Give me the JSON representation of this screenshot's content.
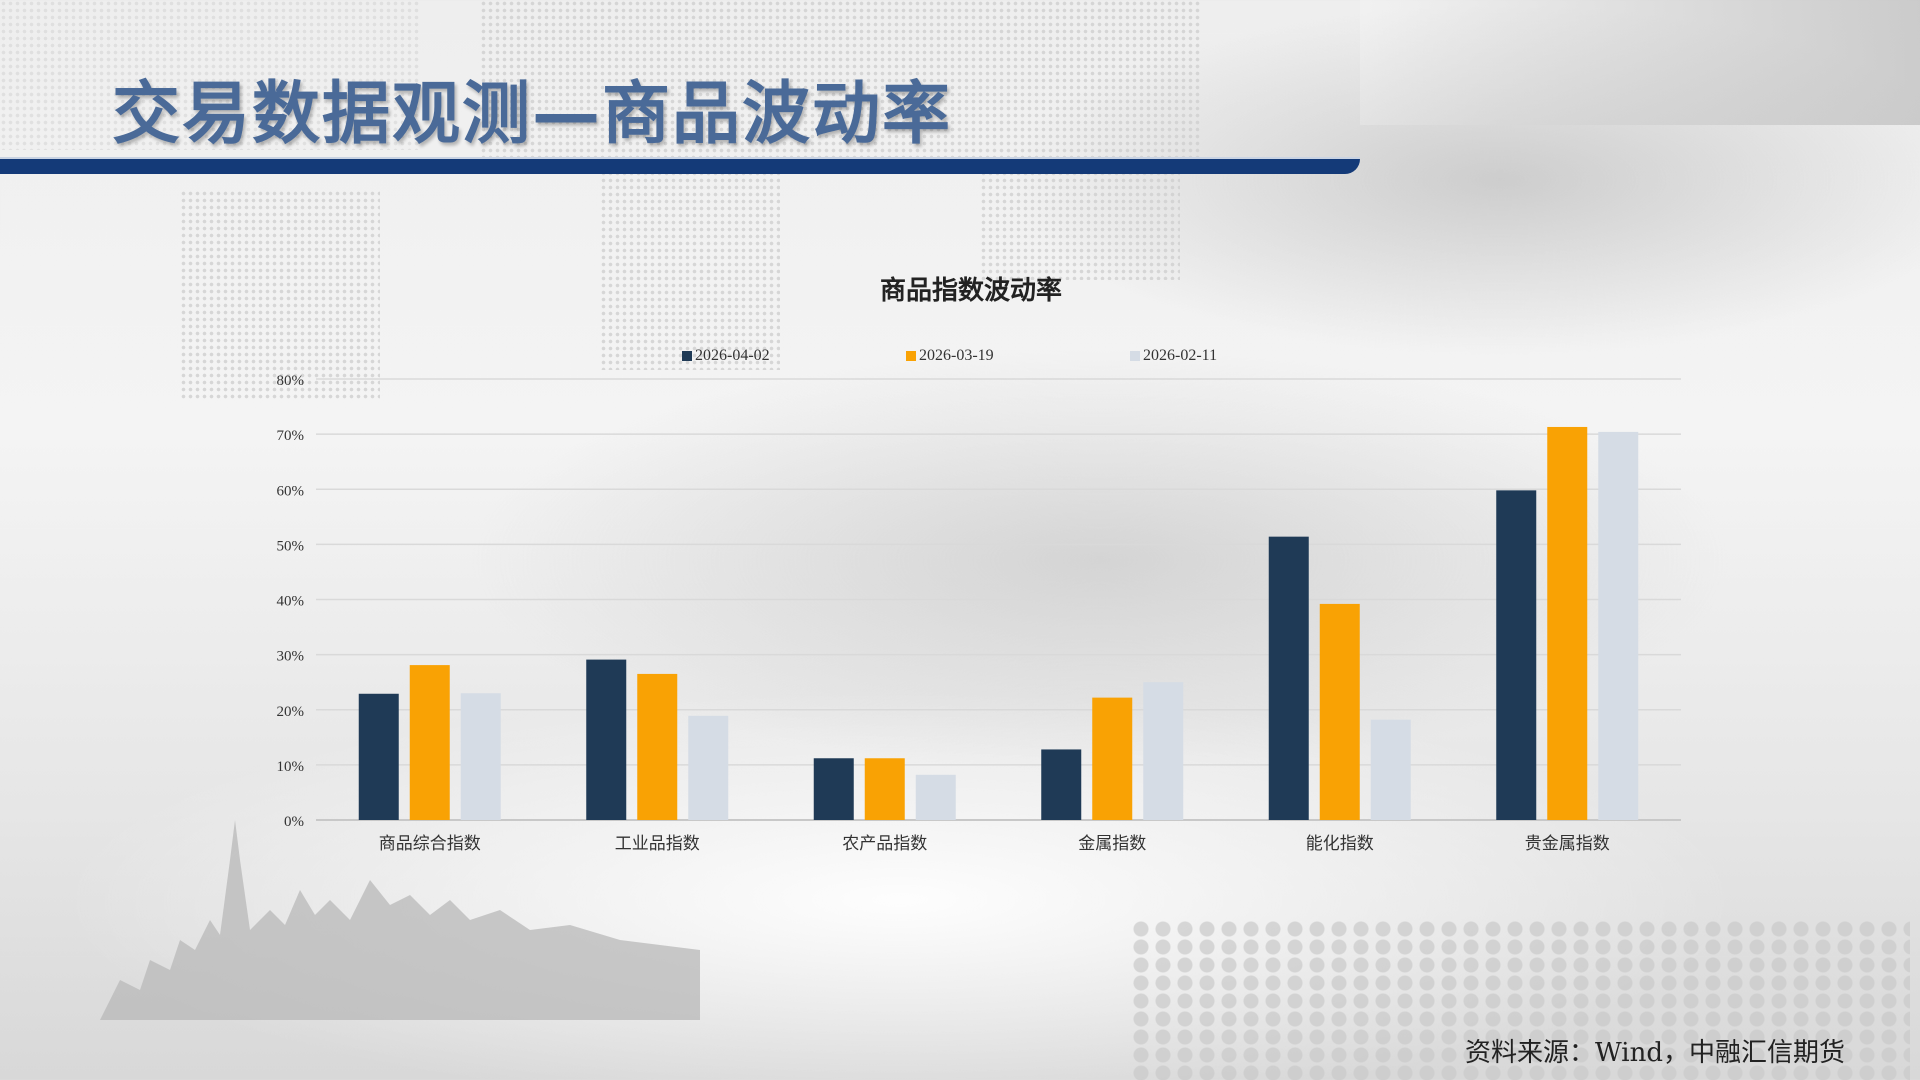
{
  "page": {
    "title": "交易数据观测—商品波动率",
    "source": "资料来源：Wind，中融汇信期货"
  },
  "colors": {
    "navy": "#1f3a56",
    "orange": "#f9a204",
    "light": "#d5dce5",
    "title_bar": "#143a78"
  },
  "chart_data": {
    "type": "bar",
    "title": "商品指数波动率",
    "xlabel": "",
    "ylabel": "",
    "ylim": [
      0,
      80
    ],
    "yticks": [
      "0%",
      "10%",
      "20%",
      "30%",
      "40%",
      "50%",
      "60%",
      "70%",
      "80%"
    ],
    "ytick_values": [
      0,
      10,
      20,
      30,
      40,
      50,
      60,
      70,
      80
    ],
    "grid": true,
    "legend_position": "top",
    "categories": [
      "商品综合指数",
      "工业品指数",
      "农产品指数",
      "金属指数",
      "能化指数",
      "贵金属指数"
    ],
    "series": [
      {
        "name": "2026-04-02",
        "color": "#1f3a56",
        "values": [
          22.9,
          29.1,
          11.2,
          12.8,
          51.4,
          59.8
        ]
      },
      {
        "name": "2026-03-19",
        "color": "#f9a204",
        "values": [
          28.1,
          26.5,
          11.2,
          22.2,
          39.2,
          71.3
        ]
      },
      {
        "name": "2026-02-11",
        "color": "#d5dce5",
        "values": [
          23.0,
          18.9,
          8.2,
          25.0,
          18.2,
          70.4
        ]
      }
    ]
  }
}
